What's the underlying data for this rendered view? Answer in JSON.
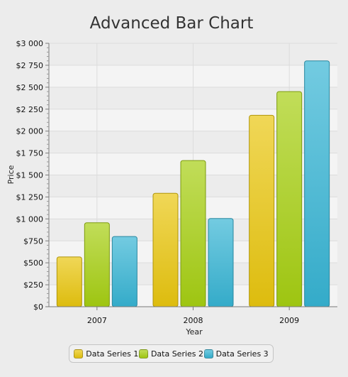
{
  "chart_data": {
    "type": "bar",
    "title": "Advanced Bar Chart",
    "xlabel": "Year",
    "ylabel": "Price",
    "categories": [
      "2007",
      "2008",
      "2009"
    ],
    "series": [
      {
        "name": "Data Series 1",
        "values": [
          567,
          1292,
          2180
        ],
        "color": "#e9c60f"
      },
      {
        "name": "Data Series 2",
        "values": [
          956,
          1665,
          2450
        ],
        "color": "#a6cf12"
      },
      {
        "name": "Data Series 3",
        "values": [
          800,
          1005,
          2800
        ],
        "color": "#37b4d4"
      }
    ],
    "ylim": [
      0,
      3000
    ],
    "yticks": [
      0,
      250,
      500,
      750,
      1000,
      1250,
      1500,
      1750,
      2000,
      2250,
      2500,
      2750,
      3000
    ],
    "ytick_labels": [
      "$0",
      "$250",
      "$500",
      "$750",
      "$1 000",
      "$1 250",
      "$1 500",
      "$1 750",
      "$2 000",
      "$2 250",
      "$2 500",
      "$2 750",
      "$3 000"
    ],
    "grid": true,
    "legend_position": "bottom"
  }
}
